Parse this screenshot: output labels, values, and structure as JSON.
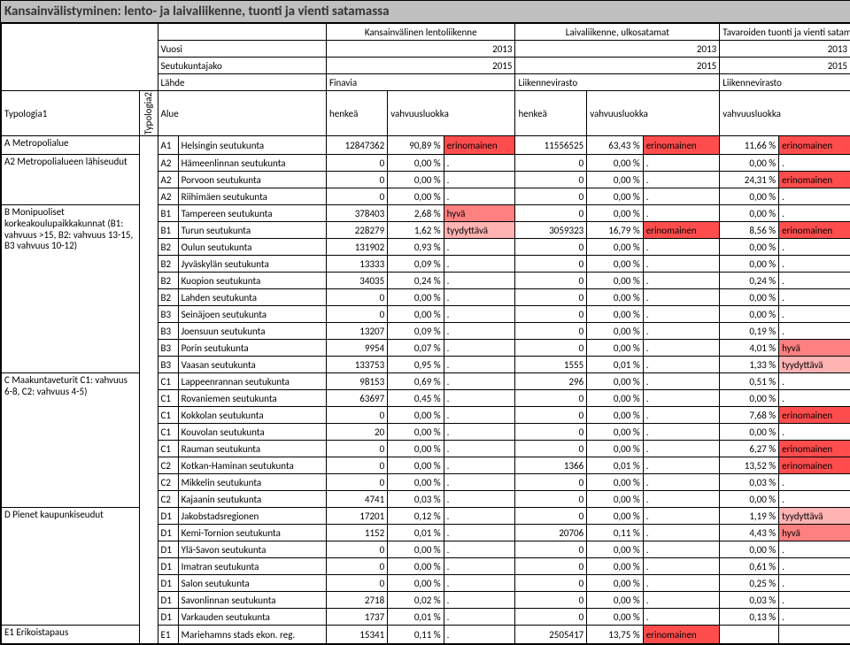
{
  "title": "Kansainvälistyminen: lento- ja laivaliikenne, tuonti ja vienti satamassa",
  "colors": {
    "erinomainen": "#ff4d4d",
    "hyva": "#ff8080",
    "tyydyttava": "#ffb3b3",
    "none": "#ffffff"
  },
  "classMap": {
    "erinomainen": "erinomainen",
    "hyvä": "hyva",
    "tyydyttävä": "tyydyttava",
    ".": "none"
  },
  "headerTop": {
    "group1": "Kansainvälinen lentoliikenne",
    "group2": "Laivaliikenne, ulkosatamat",
    "group3": "Tavaroiden tuonti ja vienti satamassa"
  },
  "headerRows": [
    {
      "label": "Vuosi",
      "v1": "2013",
      "v2": "2013",
      "v3": "2013"
    },
    {
      "label": "Seutukuntajako",
      "v1": "2015",
      "v2": "2015",
      "v3": "2015"
    },
    {
      "label": "Lähde",
      "v1": "Finavia",
      "v2": "Liikennevirasto",
      "v3": "Liikennevirasto"
    }
  ],
  "colHeaders": {
    "typ1": "Typologia1",
    "typ2": "Typologia2",
    "alue": "Alue",
    "h1": "henkeä",
    "v1": "vahvuusluokka",
    "h2": "henkeä",
    "v2": "vahvuusluokka",
    "v3": "vahvuusluokka"
  },
  "groups": [
    {
      "label": "A Metropolialue",
      "rows": [
        {
          "code": "A1",
          "alue": "Helsingin seutukunta",
          "h1": "12847362",
          "p1": "90,89 %",
          "c1": "erinomainen",
          "h2": "11556525",
          "p2": "63,43 %",
          "c2": "erinomainen",
          "p3": "11,66 %",
          "c3": "erinomainen"
        }
      ]
    },
    {
      "label": "A2 Metropolialueen lähiseudut",
      "rows": [
        {
          "code": "A2",
          "alue": "Hämeenlinnan seutukunta",
          "h1": "0",
          "p1": "0,00 %",
          "c1": ".",
          "h2": "0",
          "p2": "0,00 %",
          "c2": ".",
          "p3": "0,00 %",
          "c3": "."
        },
        {
          "code": "A2",
          "alue": "Porvoon seutukunta",
          "h1": "0",
          "p1": "0,00 %",
          "c1": ".",
          "h2": "0",
          "p2": "0,00 %",
          "c2": ".",
          "p3": "24,31 %",
          "c3": "erinomainen"
        },
        {
          "code": "A2",
          "alue": "Riihimäen seutukunta",
          "h1": "0",
          "p1": "0,00 %",
          "c1": ".",
          "h2": "0",
          "p2": "0,00 %",
          "c2": ".",
          "p3": "0,00 %",
          "c3": "."
        }
      ]
    },
    {
      "label": "B Monipuoliset korkeakoulupaikkakunnat (B1: vahvuus >15, B2: vahvuus 13-15, B3 vahvuus 10-12)",
      "rows": [
        {
          "code": "B1",
          "alue": "Tampereen seutukunta",
          "h1": "378403",
          "p1": "2,68 %",
          "c1": "hyvä",
          "h2": "0",
          "p2": "0,00 %",
          "c2": ".",
          "p3": "0,00 %",
          "c3": "."
        },
        {
          "code": "B1",
          "alue": "Turun seutukunta",
          "h1": "228279",
          "p1": "1,62 %",
          "c1": "tyydyttävä",
          "h2": "3059323",
          "p2": "16,79 %",
          "c2": "erinomainen",
          "p3": "8,56 %",
          "c3": "erinomainen"
        },
        {
          "code": "B2",
          "alue": "Oulun seutukunta",
          "h1": "131902",
          "p1": "0,93 %",
          "c1": ".",
          "h2": "0",
          "p2": "0,00 %",
          "c2": ".",
          "p3": "0,00 %",
          "c3": "."
        },
        {
          "code": "B2",
          "alue": "Jyväskylän seutukunta",
          "h1": "13333",
          "p1": "0,09 %",
          "c1": ".",
          "h2": "0",
          "p2": "0,00 %",
          "c2": ".",
          "p3": "0,00 %",
          "c3": "."
        },
        {
          "code": "B2",
          "alue": "Kuopion seutukunta",
          "h1": "34035",
          "p1": "0,24 %",
          "c1": ".",
          "h2": "0",
          "p2": "0,00 %",
          "c2": ".",
          "p3": "0,24 %",
          "c3": "."
        },
        {
          "code": "B2",
          "alue": "Lahden seutukunta",
          "h1": "0",
          "p1": "0,00 %",
          "c1": ".",
          "h2": "0",
          "p2": "0,00 %",
          "c2": ".",
          "p3": "0,00 %",
          "c3": "."
        },
        {
          "code": "B3",
          "alue": "Seinäjoen seutukunta",
          "h1": "0",
          "p1": "0,00 %",
          "c1": ".",
          "h2": "0",
          "p2": "0,00 %",
          "c2": ".",
          "p3": "0,00 %",
          "c3": "."
        },
        {
          "code": "B3",
          "alue": "Joensuun seutukunta",
          "h1": "13207",
          "p1": "0,09 %",
          "c1": ".",
          "h2": "0",
          "p2": "0,00 %",
          "c2": ".",
          "p3": "0,19 %",
          "c3": "."
        },
        {
          "code": "B3",
          "alue": "Porin seutukunta",
          "h1": "9954",
          "p1": "0,07 %",
          "c1": ".",
          "h2": "0",
          "p2": "0,00 %",
          "c2": ".",
          "p3": "4,01 %",
          "c3": "hyvä"
        },
        {
          "code": "B3",
          "alue": "Vaasan seutukunta",
          "h1": "133753",
          "p1": "0,95 %",
          "c1": ".",
          "h2": "1555",
          "p2": "0,01 %",
          "c2": ".",
          "p3": "1,33 %",
          "c3": "tyydyttävä"
        }
      ]
    },
    {
      "label": "C Maakuntaveturit C1: vahvuus 6-8, C2: vahvuus 4-5)",
      "rows": [
        {
          "code": "C1",
          "alue": "Lappeenrannan seutukunta",
          "h1": "98153",
          "p1": "0,69 %",
          "c1": ".",
          "h2": "296",
          "p2": "0,00 %",
          "c2": ".",
          "p3": "0,51 %",
          "c3": "."
        },
        {
          "code": "C1",
          "alue": "Rovaniemen seutukunta",
          "h1": "63697",
          "p1": "0,45 %",
          "c1": ".",
          "h2": "0",
          "p2": "0,00 %",
          "c2": ".",
          "p3": "0,00 %",
          "c3": "."
        },
        {
          "code": "C1",
          "alue": "Kokkolan seutukunta",
          "h1": "0",
          "p1": "0,00 %",
          "c1": ".",
          "h2": "0",
          "p2": "0,00 %",
          "c2": ".",
          "p3": "7,68 %",
          "c3": "erinomainen"
        },
        {
          "code": "C1",
          "alue": "Kouvolan seutukunta",
          "h1": "20",
          "p1": "0,00 %",
          "c1": ".",
          "h2": "0",
          "p2": "0,00 %",
          "c2": ".",
          "p3": "0,00 %",
          "c3": "."
        },
        {
          "code": "C1",
          "alue": "Rauman seutukunta",
          "h1": "0",
          "p1": "0,00 %",
          "c1": ".",
          "h2": "0",
          "p2": "0,00 %",
          "c2": ".",
          "p3": "6,27 %",
          "c3": "erinomainen"
        },
        {
          "code": "C2",
          "alue": "Kotkan-Haminan seutukunta",
          "h1": "0",
          "p1": "0,00 %",
          "c1": ".",
          "h2": "1366",
          "p2": "0,01 %",
          "c2": ".",
          "p3": "13,52 %",
          "c3": "erinomainen"
        },
        {
          "code": "C2",
          "alue": "Mikkelin seutukunta",
          "h1": "0",
          "p1": "0,00 %",
          "c1": ".",
          "h2": "0",
          "p2": "0,00 %",
          "c2": ".",
          "p3": "0,03 %",
          "c3": "."
        },
        {
          "code": "C2",
          "alue": "Kajaanin seutukunta",
          "h1": "4741",
          "p1": "0,03 %",
          "c1": ".",
          "h2": "0",
          "p2": "0,00 %",
          "c2": ".",
          "p3": "0,00 %",
          "c3": "."
        }
      ]
    },
    {
      "label": "D Pienet kaupunkiseudut",
      "rows": [
        {
          "code": "D1",
          "alue": "Jakobstadsregionen",
          "h1": "17201",
          "p1": "0,12 %",
          "c1": ".",
          "h2": "0",
          "p2": "0,00 %",
          "c2": ".",
          "p3": "1,19 %",
          "c3": "tyydyttävä"
        },
        {
          "code": "D1",
          "alue": "Kemi-Tornion seutukunta",
          "h1": "1152",
          "p1": "0,01 %",
          "c1": ".",
          "h2": "20706",
          "p2": "0,11 %",
          "c2": ".",
          "p3": "4,43 %",
          "c3": "hyvä"
        },
        {
          "code": "D1",
          "alue": "Ylä-Savon seutukunta",
          "h1": "0",
          "p1": "0,00 %",
          "c1": ".",
          "h2": "0",
          "p2": "0,00 %",
          "c2": ".",
          "p3": "0,00 %",
          "c3": "."
        },
        {
          "code": "D1",
          "alue": "Imatran seutukunta",
          "h1": "0",
          "p1": "0,00 %",
          "c1": ".",
          "h2": "0",
          "p2": "0,00 %",
          "c2": ".",
          "p3": "0,61 %",
          "c3": "."
        },
        {
          "code": "D1",
          "alue": "Salon seutukunta",
          "h1": "0",
          "p1": "0,00 %",
          "c1": ".",
          "h2": "0",
          "p2": "0,00 %",
          "c2": ".",
          "p3": "0,25 %",
          "c3": "."
        },
        {
          "code": "D1",
          "alue": "Savonlinnan seutukunta",
          "h1": "2718",
          "p1": "0,02 %",
          "c1": ".",
          "h2": "0",
          "p2": "0,00 %",
          "c2": ".",
          "p3": "0,03 %",
          "c3": "."
        },
        {
          "code": "D1",
          "alue": "Varkauden seutukunta",
          "h1": "1737",
          "p1": "0,01 %",
          "c1": ".",
          "h2": "0",
          "p2": "0,00 %",
          "c2": ".",
          "p3": "0,13 %",
          "c3": "."
        }
      ]
    },
    {
      "label": "E1 Erikoistapaus",
      "rows": [
        {
          "code": "E1",
          "alue": "Mariehamns stads ekon. reg.",
          "h1": "15341",
          "p1": "0,11 %",
          "c1": ".",
          "h2": "2505417",
          "p2": "13,75 %",
          "c2": "erinomainen",
          "p3": "",
          "c3": ""
        }
      ]
    }
  ]
}
